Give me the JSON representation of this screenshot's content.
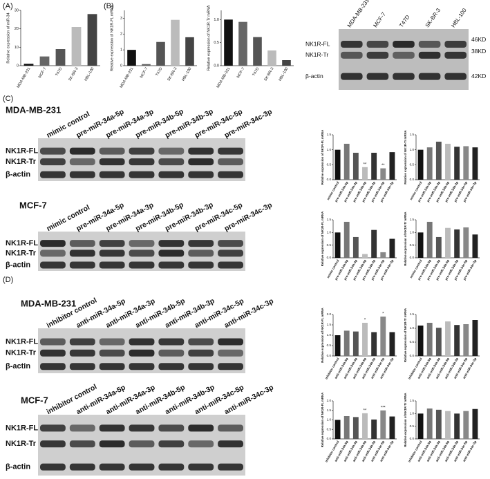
{
  "panels": [
    "(A)",
    "(B)",
    "(C)",
    "(D)"
  ],
  "blots": [
    {
      "lanes": [
        "MDA-MB-231",
        "MCF-7",
        "T47D",
        "SK-BR-3",
        "HBL-100"
      ],
      "rows": [
        "NK1R-FL",
        "NK1R-Tr",
        "β-actin"
      ],
      "sizes": [
        "46KD",
        "38KD",
        "42KD"
      ]
    },
    {
      "title": "MDA-MB-231",
      "lanes": [
        "mimic control",
        "pre-miR-34a-5p",
        "pre-miR-34a-3p",
        "pre-miR-34b-5p",
        "pre-miR-34b-3p",
        "pre-miR-34c-5p",
        "pre-miR-34c-3p"
      ],
      "rows": [
        "NK1R-FL",
        "NK1R-Tr",
        "β-actin"
      ]
    },
    {
      "title": "MCF-7",
      "lanes": [
        "mimic control",
        "pre-miR-34a-5p",
        "pre-miR-34a-3p",
        "pre-miR-34b-5p",
        "pre-miR-34b-3p",
        "pre-miR-34c-5p",
        "pre-miR-34c-3p"
      ],
      "rows": [
        "NK1R-FL",
        "NK1R-Tr",
        "β-actin"
      ]
    },
    {
      "title": "MDA-MB-231",
      "lanes": [
        "inhibitor control",
        "anti-miR-34a-5p",
        "anti-miR-34a-3p",
        "anti-miR-34b-5p",
        "anti-miR-34b-3p",
        "anti-miR-34c-5p",
        "anti-miR-34c-3p"
      ],
      "rows": [
        "NK1R-FL",
        "NK1R-Tr",
        "β-actin"
      ]
    },
    {
      "title": "MCF-7",
      "lanes": [
        "inhibitor control",
        "anti-miR-34a-5p",
        "anti-miR-34a-3p",
        "anti-miR-34b-5p",
        "anti-miR-34b-3p",
        "anti-miR-34c-5p",
        "anti-miR-34c-3p"
      ],
      "rows": [
        "NK1R-FL",
        "NK1R-Tr",
        "β-actin"
      ]
    }
  ],
  "chart_data": [
    {
      "type": "bar",
      "ylabel": "Relative expression of miR-34",
      "categories": [
        "MDA-MB-231",
        "MCF-7",
        "T47D",
        "SK-BR-3",
        "HBL-100"
      ],
      "values": [
        1,
        5,
        9,
        21,
        28
      ],
      "colors": [
        "#111111",
        "#666666",
        "#555555",
        "#bbbbbb",
        "#444444"
      ],
      "ylim": [
        0,
        30
      ],
      "yticks": [
        0,
        10,
        20,
        30
      ]
    },
    {
      "type": "bar",
      "ylabel": "Relative expression of NK1R-FL mRNA",
      "categories": [
        "MDA-MB-231",
        "MCF-7",
        "T47D",
        "SK-BR-3",
        "HBL-100"
      ],
      "values": [
        1.0,
        0.1,
        1.5,
        2.9,
        1.8
      ],
      "colors": [
        "#111111",
        "#666666",
        "#555555",
        "#bbbbbb",
        "#444444"
      ],
      "ylim": [
        0,
        3.5
      ],
      "yticks": [
        0,
        1,
        2,
        3
      ]
    },
    {
      "type": "bar",
      "ylabel": "Relative expression of NK1R-Tr mRNA",
      "categories": [
        "MDA-MB-231",
        "MCF-7",
        "T47D",
        "SK-BR-3",
        "HBL-100"
      ],
      "values": [
        1.0,
        0.95,
        0.62,
        0.33,
        0.12
      ],
      "colors": [
        "#111111",
        "#666666",
        "#555555",
        "#bbbbbb",
        "#444444"
      ],
      "ylim": [
        0,
        1.2
      ],
      "yticks": [
        {
          "value": 0,
          "label": "0.0"
        },
        0.5,
        {
          "value": 1,
          "label": "1.0"
        }
      ]
    },
    {
      "type": "bar",
      "ylabel": "Relative expression of NK1R-FL mRNA",
      "categories": [
        "mimic control",
        "pre-miR-34a-5p",
        "pre-miR-34a-3p",
        "pre-miR-34b-5p",
        "pre-miR-34b-3p",
        "pre-miR-34c-5p",
        "pre-miR-34c-3p"
      ],
      "values": [
        1.0,
        1.2,
        0.9,
        0.42,
        0.9,
        0.38,
        0.92
      ],
      "significance": [
        null,
        null,
        null,
        "**",
        null,
        "**",
        null
      ],
      "colors": [
        "#111111",
        "#777777",
        "#555555",
        "#bbbbbb",
        "#333333",
        "#888888",
        "#222222"
      ],
      "ylim": [
        0,
        1.5
      ],
      "yticks": [
        {
          "value": 0,
          "label": "0.0"
        },
        0.5,
        {
          "value": 1,
          "label": "1.0"
        },
        1.5
      ]
    },
    {
      "type": "bar",
      "ylabel": "Relative expression of NK1R-Tr mRNA",
      "categories": [
        "mimic control",
        "pre-miR-34a-5p",
        "pre-miR-34a-3p",
        "pre-miR-34b-5p",
        "pre-miR-34b-3p",
        "pre-miR-34c-5p",
        "pre-miR-34c-3p"
      ],
      "values": [
        1.0,
        1.08,
        1.27,
        1.2,
        1.1,
        1.12,
        1.08
      ],
      "colors": [
        "#111111",
        "#777777",
        "#555555",
        "#bbbbbb",
        "#333333",
        "#888888",
        "#222222"
      ],
      "ylim": [
        0,
        1.5
      ],
      "yticks": [
        {
          "value": 0,
          "label": "0.0"
        },
        0.5,
        {
          "value": 1,
          "label": "1.0"
        },
        1.5
      ]
    },
    {
      "type": "bar",
      "ylabel": "Relative expression of NK1R-FL mRNA",
      "categories": [
        "mimic control",
        "pre-miR-34a-5p",
        "pre-miR-34a-3p",
        "pre-miR-34b-5p",
        "pre-miR-34b-3p",
        "pre-miR-34c-5p",
        "pre-miR-34c-3p"
      ],
      "values": [
        1.0,
        1.42,
        0.82,
        0.15,
        1.1,
        0.22,
        0.75
      ],
      "colors": [
        "#111111",
        "#777777",
        "#555555",
        "#bbbbbb",
        "#333333",
        "#888888",
        "#222222"
      ],
      "ylim": [
        0,
        1.5
      ],
      "yticks": [
        {
          "value": 0,
          "label": "0.0"
        },
        0.5,
        {
          "value": 1,
          "label": "1.0"
        },
        1.5
      ]
    },
    {
      "type": "bar",
      "ylabel": "Relative expression of NK1R-Tr mRNA",
      "categories": [
        "mimic control",
        "pre-miR-34a-5p",
        "pre-miR-34a-3p",
        "pre-miR-34b-5p",
        "pre-miR-34b-3p",
        "pre-miR-34c-5p",
        "pre-miR-34c-3p"
      ],
      "values": [
        1.0,
        1.42,
        0.82,
        1.18,
        1.12,
        1.2,
        0.92
      ],
      "colors": [
        "#111111",
        "#777777",
        "#555555",
        "#bbbbbb",
        "#333333",
        "#888888",
        "#222222"
      ],
      "ylim": [
        0,
        1.5
      ],
      "yticks": [
        {
          "value": 0,
          "label": "0.0"
        },
        0.5,
        {
          "value": 1,
          "label": "1.0"
        },
        1.5
      ]
    },
    {
      "type": "bar",
      "ylabel": "Relative expression of NK1R-FL mRNA",
      "categories": [
        "inhibitor control",
        "anti-miR-34a-5p",
        "anti-miR-34a-3p",
        "anti-miR-34b-5p",
        "anti-miR-34b-3p",
        "anti-miR-34c-5p",
        "anti-miR-34c-3p"
      ],
      "values": [
        1.0,
        1.22,
        1.18,
        1.6,
        1.15,
        1.9,
        1.15
      ],
      "significance": [
        null,
        null,
        null,
        "*",
        null,
        "*",
        null
      ],
      "colors": [
        "#111111",
        "#777777",
        "#555555",
        "#bbbbbb",
        "#333333",
        "#888888",
        "#222222"
      ],
      "ylim": [
        0,
        2
      ],
      "yticks": [
        {
          "value": 0,
          "label": "0.0"
        },
        0.5,
        {
          "value": 1,
          "label": "1.0"
        },
        1.5,
        {
          "value": 2,
          "label": "2.0"
        }
      ]
    },
    {
      "type": "bar",
      "ylabel": "Relative expression of NK1R-Tr mRNA",
      "categories": [
        "inhibitor control",
        "anti-miR-34a-5p",
        "anti-miR-34a-3p",
        "anti-miR-34b-5p",
        "anti-miR-34b-3p",
        "anti-miR-34c-5p",
        "anti-miR-34c-3p"
      ],
      "values": [
        1.1,
        1.2,
        1.02,
        1.25,
        1.12,
        1.15,
        1.3
      ],
      "colors": [
        "#111111",
        "#777777",
        "#555555",
        "#bbbbbb",
        "#333333",
        "#888888",
        "#222222"
      ],
      "ylim": [
        0,
        1.5
      ],
      "yticks": [
        {
          "value": 0,
          "label": "0.0"
        },
        0.5,
        {
          "value": 1,
          "label": "1.0"
        },
        1.5
      ]
    },
    {
      "type": "bar",
      "ylabel": "Relative expression of NK1R-FL mRNA",
      "categories": [
        "inhibitor control",
        "anti-miR-34a-5p",
        "anti-miR-34a-3p",
        "anti-miR-34b-5p",
        "anti-miR-34b-3p",
        "anti-miR-34c-5p",
        "anti-miR-34c-3p"
      ],
      "values": [
        1.0,
        1.2,
        1.15,
        1.35,
        1.02,
        1.5,
        1.18
      ],
      "significance": [
        null,
        null,
        null,
        "**",
        null,
        "***",
        null
      ],
      "colors": [
        "#111111",
        "#777777",
        "#555555",
        "#bbbbbb",
        "#333333",
        "#888888",
        "#222222"
      ],
      "ylim": [
        0,
        2
      ],
      "yticks": [
        {
          "value": 0,
          "label": "0.0"
        },
        0.5,
        {
          "value": 1,
          "label": "1.0"
        },
        1.5,
        {
          "value": 2,
          "label": "2.0"
        }
      ]
    },
    {
      "type": "bar",
      "ylabel": "Relative expression of NK1R-Tr mRNA",
      "categories": [
        "inhibitor control",
        "anti-miR-34a-5p",
        "anti-miR-34a-3p",
        "anti-miR-34b-5p",
        "anti-miR-34b-3p",
        "anti-miR-34c-5p",
        "anti-miR-34c-3p"
      ],
      "values": [
        1.0,
        1.2,
        1.15,
        1.1,
        1.0,
        1.1,
        1.18
      ],
      "colors": [
        "#111111",
        "#777777",
        "#555555",
        "#bbbbbb",
        "#333333",
        "#888888",
        "#222222"
      ],
      "ylim": [
        0,
        1.5
      ],
      "yticks": [
        {
          "value": 0,
          "label": "0.0"
        },
        0.5,
        {
          "value": 1,
          "label": "1.0"
        },
        1.5
      ]
    }
  ]
}
